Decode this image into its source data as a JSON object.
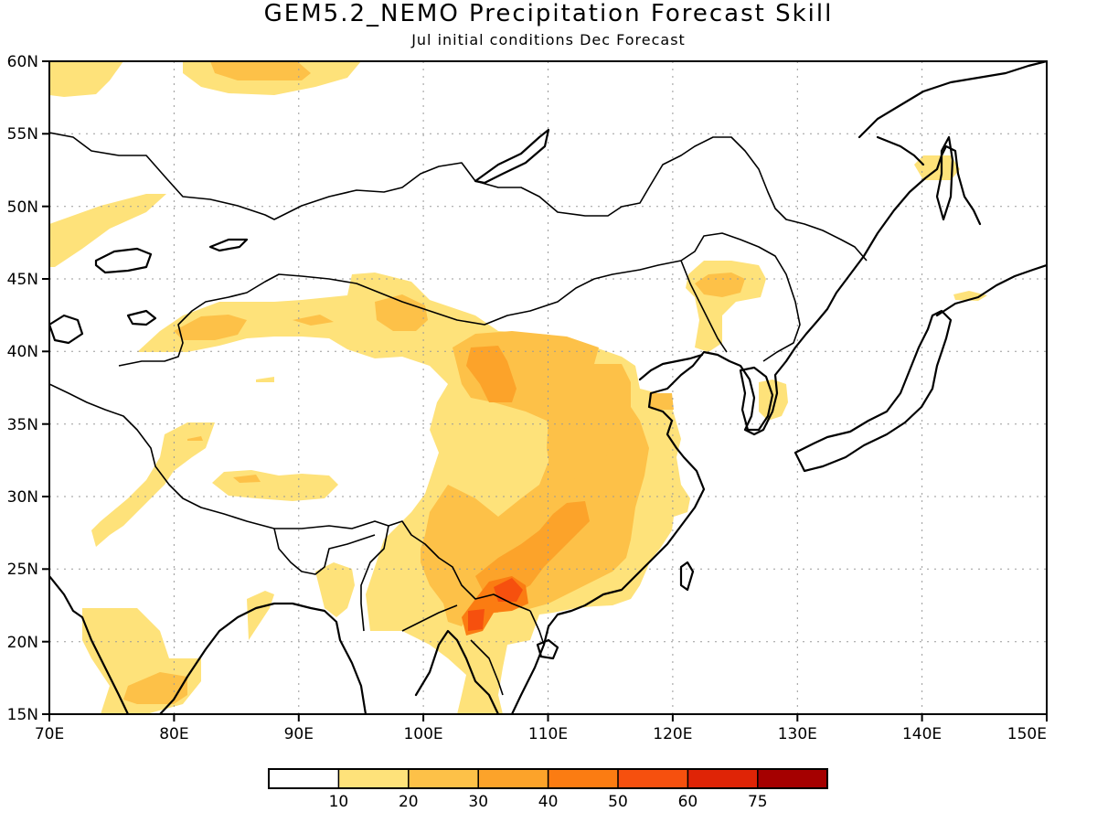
{
  "title": "GEM5.2_NEMO Precipitation Forecast Skill",
  "subtitle": "Jul initial conditions  Dec Forecast",
  "map": {
    "lon_range": [
      70,
      150
    ],
    "lat_range": [
      15,
      60
    ],
    "lon_ticks": [
      "70E",
      "80E",
      "90E",
      "100E",
      "110E",
      "120E",
      "130E",
      "140E",
      "150E"
    ],
    "lat_ticks": [
      "15N",
      "20N",
      "25N",
      "30N",
      "35N",
      "40N",
      "45N",
      "50N",
      "55N",
      "60N"
    ],
    "grid": "dotted"
  },
  "colorbar": {
    "labels": [
      "10",
      "20",
      "30",
      "40",
      "50",
      "60",
      "75"
    ],
    "colors": [
      "#ffffff",
      "#fee27a",
      "#fdc148",
      "#fca32a",
      "#fb7c12",
      "#f6500e",
      "#df2406",
      "#a50000"
    ]
  },
  "colors": {
    "lvl10": "#fee27a",
    "lvl20": "#fdc148",
    "lvl30": "#fca32a",
    "lvl40": "#fb7c12",
    "lvl50": "#f6500e"
  }
}
